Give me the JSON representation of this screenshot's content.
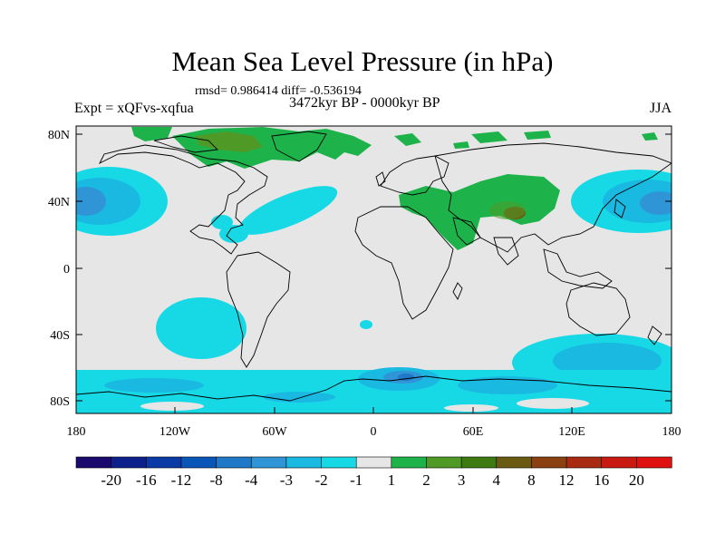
{
  "title": "Mean Sea Level Pressure (in hPa)",
  "stats": "rmsd= 0.986414 diff= -0.536194",
  "experiment": "Expt = xQFvs-xqfua",
  "period": "3472kyr BP - 0000kyr BP",
  "season": "JJA",
  "lat_ticks": [
    "80N",
    "40N",
    "0",
    "40S",
    "80S"
  ],
  "lon_ticks": [
    "180",
    "120W",
    "60W",
    "0",
    "60E",
    "120E",
    "180"
  ],
  "colorbar": {
    "labels": [
      "-20",
      "-16",
      "-12",
      "-8",
      "-4",
      "-3",
      "-2",
      "-1",
      "1",
      "2",
      "3",
      "4",
      "8",
      "12",
      "16",
      "20"
    ],
    "colors": [
      "#1a0a6e",
      "#0d1f8a",
      "#0a3aa6",
      "#0a55b8",
      "#1f78c8",
      "#2f95d6",
      "#19b9e2",
      "#17d9e6",
      "#e6e6e6",
      "#1db34a",
      "#4f9a26",
      "#3d7a10",
      "#6b5a12",
      "#8a4010",
      "#a82a10",
      "#c81a10",
      "#e01010"
    ]
  },
  "colors": {
    "background": "#e6e6e6",
    "coast": "#000000",
    "neg1": "#17d9e6",
    "neg2": "#19b9e2",
    "neg3": "#2f95d6",
    "neg4": "#1f78c8",
    "pos1": "#1db34a",
    "pos2": "#4f9a26",
    "pos3": "#6b5a12"
  }
}
